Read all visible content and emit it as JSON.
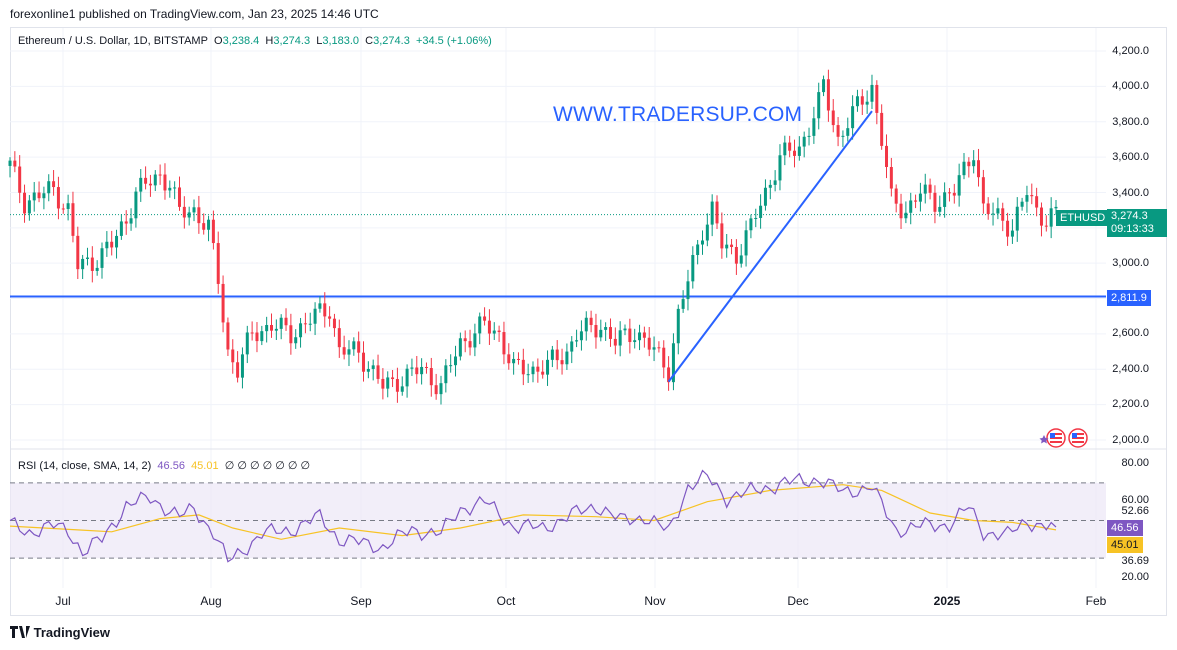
{
  "header": {
    "published": "forexonline1 published on TradingView.com, Jan 23, 2025 14:46 UTC"
  },
  "legend": {
    "title": "Ethereum / U.S. Dollar, 1D, BITSTAMP",
    "o_label": "O",
    "o": "3,238.4",
    "h_label": "H",
    "h": "3,274.3",
    "l_label": "L",
    "l": "3,183.0",
    "c_label": "C",
    "c": "3,274.3",
    "change": "+34.5 (+1.06%)"
  },
  "watermark": "WWW.TRADERSUP.COM",
  "rsi_legend": {
    "title": "RSI (14, close, SMA, 14, 2)",
    "rsi": "46.56",
    "sma": "45.01",
    "hidden": "∅ ∅ ∅ ∅ ∅ ∅ ∅"
  },
  "price_badges": {
    "symbol": "ETHUSD",
    "last": "3,274.3",
    "countdown": "09:13:33",
    "level": "2,811.9"
  },
  "rsi_badges": {
    "rsi": "46.56",
    "sma": "45.01"
  },
  "footer": {
    "brand": "TradingView"
  },
  "colors": {
    "up": "#089981",
    "down": "#f23645",
    "line": "#2962ff",
    "rsi": "#7e57c2",
    "sma": "#f7c325",
    "band": "#ede7f6"
  },
  "chart_data": [
    {
      "type": "candlestick",
      "title": "Ethereum / U.S. Dollar, 1D, BITSTAMP",
      "x_ticks": [
        "Jul",
        "Aug",
        "Sep",
        "Oct",
        "Nov",
        "Dec",
        "2025",
        "Feb"
      ],
      "y_ticks": [
        "4,200.0",
        "4,000.0",
        "3,800.0",
        "3,600.0",
        "3,400.0",
        "3,200.0",
        "3,000.0",
        "2,800.0",
        "2,600.0",
        "2,400.0",
        "2,200.0",
        "2,000.0"
      ],
      "ylim": [
        1960,
        4270
      ],
      "horizontal_level": 2811.9,
      "trendline": {
        "from": [
          "2024-11-04",
          2330
        ],
        "to": [
          "2024-12-16",
          3860
        ]
      },
      "close_path": [
        [
          "2024-06-21",
          3550
        ],
        [
          "2024-06-24",
          3350
        ],
        [
          "2024-06-27",
          3380
        ],
        [
          "2024-06-30",
          3420
        ],
        [
          "2024-07-03",
          3300
        ],
        [
          "2024-07-05",
          2980
        ],
        [
          "2024-07-08",
          3010
        ],
        [
          "2024-07-12",
          3100
        ],
        [
          "2024-07-15",
          3250
        ],
        [
          "2024-07-17",
          3400
        ],
        [
          "2024-07-22",
          3500
        ],
        [
          "2024-07-24",
          3450
        ],
        [
          "2024-07-26",
          3280
        ],
        [
          "2024-07-29",
          3300
        ],
        [
          "2024-08-01",
          3200
        ],
        [
          "2024-08-03",
          2900
        ],
        [
          "2024-08-05",
          2500
        ],
        [
          "2024-08-07",
          2400
        ],
        [
          "2024-08-10",
          2600
        ],
        [
          "2024-08-14",
          2650
        ],
        [
          "2024-08-18",
          2600
        ],
        [
          "2024-08-23",
          2700
        ],
        [
          "2024-08-26",
          2750
        ],
        [
          "2024-08-28",
          2500
        ],
        [
          "2024-09-01",
          2500
        ],
        [
          "2024-09-06",
          2300
        ],
        [
          "2024-09-10",
          2350
        ],
        [
          "2024-09-14",
          2400
        ],
        [
          "2024-09-18",
          2300
        ],
        [
          "2024-09-22",
          2550
        ],
        [
          "2024-09-27",
          2650
        ],
        [
          "2024-09-30",
          2600
        ],
        [
          "2024-10-03",
          2400
        ],
        [
          "2024-10-07",
          2400
        ],
        [
          "2024-10-10",
          2420
        ],
        [
          "2024-10-14",
          2500
        ],
        [
          "2024-10-16",
          2600
        ],
        [
          "2024-10-21",
          2650
        ],
        [
          "2024-10-24",
          2550
        ],
        [
          "2024-10-28",
          2620
        ],
        [
          "2024-11-01",
          2500
        ],
        [
          "2024-11-04",
          2400
        ],
        [
          "2024-11-06",
          2700
        ],
        [
          "2024-11-08",
          2900
        ],
        [
          "2024-11-11",
          3200
        ],
        [
          "2024-11-13",
          3300
        ],
        [
          "2024-11-15",
          3100
        ],
        [
          "2024-11-18",
          3050
        ],
        [
          "2024-11-21",
          3200
        ],
        [
          "2024-11-24",
          3400
        ],
        [
          "2024-11-27",
          3600
        ],
        [
          "2024-12-01",
          3650
        ],
        [
          "2024-12-05",
          3900
        ],
        [
          "2024-12-06",
          4000
        ],
        [
          "2024-12-09",
          3700
        ],
        [
          "2024-12-11",
          3800
        ],
        [
          "2024-12-16",
          4000
        ],
        [
          "2024-12-18",
          3700
        ],
        [
          "2024-12-20",
          3350
        ],
        [
          "2024-12-23",
          3300
        ],
        [
          "2024-12-26",
          3400
        ],
        [
          "2024-12-29",
          3350
        ],
        [
          "2025-01-02",
          3400
        ],
        [
          "2025-01-06",
          3650
        ],
        [
          "2025-01-08",
          3300
        ],
        [
          "2025-01-12",
          3250
        ],
        [
          "2025-01-14",
          3200
        ],
        [
          "2025-01-17",
          3400
        ],
        [
          "2025-01-19",
          3300
        ],
        [
          "2025-01-21",
          3250
        ],
        [
          "2025-01-23",
          3274.3
        ]
      ]
    },
    {
      "type": "line",
      "title": "RSI (14, close, SMA, 14, 2)",
      "y_ticks": [
        "80.00",
        "60.00",
        "52.66",
        "36.69",
        "20.00"
      ],
      "ylim": [
        16,
        82
      ],
      "bands": [
        30,
        50,
        70
      ],
      "series": [
        {
          "name": "RSI",
          "last": 46.56
        },
        {
          "name": "SMA",
          "last": 45.01
        }
      ],
      "rsi_path": [
        [
          "2024-06-21",
          48
        ],
        [
          "2024-06-25",
          44
        ],
        [
          "2024-06-30",
          47
        ],
        [
          "2024-07-03",
          45
        ],
        [
          "2024-07-06",
          33
        ],
        [
          "2024-07-10",
          40
        ],
        [
          "2024-07-15",
          58
        ],
        [
          "2024-07-20",
          62
        ],
        [
          "2024-07-26",
          52
        ],
        [
          "2024-07-29",
          56
        ],
        [
          "2024-08-02",
          44
        ],
        [
          "2024-08-05",
          28
        ],
        [
          "2024-08-07",
          32
        ],
        [
          "2024-08-12",
          43
        ],
        [
          "2024-08-18",
          45
        ],
        [
          "2024-08-24",
          52
        ],
        [
          "2024-08-28",
          40
        ],
        [
          "2024-09-06",
          36
        ],
        [
          "2024-09-12",
          45
        ],
        [
          "2024-09-18",
          43
        ],
        [
          "2024-09-22",
          56
        ],
        [
          "2024-09-27",
          60
        ],
        [
          "2024-10-03",
          47
        ],
        [
          "2024-10-09",
          46
        ],
        [
          "2024-10-15",
          53
        ],
        [
          "2024-10-20",
          58
        ],
        [
          "2024-10-25",
          50
        ],
        [
          "2024-10-30",
          52
        ],
        [
          "2024-11-04",
          44
        ],
        [
          "2024-11-08",
          68
        ],
        [
          "2024-11-12",
          73
        ],
        [
          "2024-11-16",
          62
        ],
        [
          "2024-11-22",
          66
        ],
        [
          "2024-11-28",
          70
        ],
        [
          "2024-12-05",
          72
        ],
        [
          "2024-12-10",
          65
        ],
        [
          "2024-12-16",
          68
        ],
        [
          "2024-12-18",
          58
        ],
        [
          "2024-12-21",
          45
        ],
        [
          "2024-12-26",
          47
        ],
        [
          "2025-01-01",
          48
        ],
        [
          "2025-01-05",
          57
        ],
        [
          "2025-01-08",
          44
        ],
        [
          "2025-01-13",
          42
        ],
        [
          "2025-01-17",
          50
        ],
        [
          "2025-01-20",
          47
        ],
        [
          "2025-01-23",
          46.56
        ]
      ],
      "sma_path": [
        [
          "2024-06-21",
          47
        ],
        [
          "2024-07-05",
          45
        ],
        [
          "2024-07-12",
          44
        ],
        [
          "2024-07-22",
          51
        ],
        [
          "2024-07-30",
          53
        ],
        [
          "2024-08-06",
          46
        ],
        [
          "2024-08-16",
          40
        ],
        [
          "2024-08-28",
          46
        ],
        [
          "2024-09-10",
          42
        ],
        [
          "2024-09-22",
          46
        ],
        [
          "2024-10-05",
          53
        ],
        [
          "2024-10-20",
          52
        ],
        [
          "2024-11-01",
          50
        ],
        [
          "2024-11-12",
          60
        ],
        [
          "2024-11-25",
          66
        ],
        [
          "2024-12-10",
          69
        ],
        [
          "2024-12-18",
          66
        ],
        [
          "2024-12-28",
          54
        ],
        [
          "2025-01-06",
          50
        ],
        [
          "2025-01-14",
          49
        ],
        [
          "2025-01-23",
          45.01
        ]
      ]
    }
  ]
}
